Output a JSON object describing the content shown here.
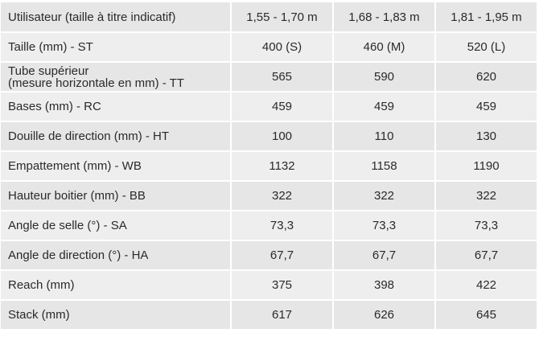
{
  "table": {
    "header": {
      "label": "Utilisateur (taille à titre indicatif)",
      "cols": [
        "1,55 - 1,70 m",
        "1,68 - 1,83 m",
        "1,81 - 1,95 m"
      ]
    },
    "rows": [
      {
        "label_lines": [
          "Taille (mm) - ST"
        ],
        "values": [
          "400 (S)",
          "460 (M)",
          "520 (L)"
        ]
      },
      {
        "label_lines": [
          "Tube supérieur",
          "(mesure horizontale en mm) - TT"
        ],
        "values": [
          "565",
          "590",
          "620"
        ]
      },
      {
        "label_lines": [
          "Bases (mm) - RC"
        ],
        "values": [
          "459",
          "459",
          "459"
        ]
      },
      {
        "label_lines": [
          "Douille de direction (mm) - HT"
        ],
        "values": [
          "100",
          "110",
          "130"
        ]
      },
      {
        "label_lines": [
          "Empattement (mm) - WB"
        ],
        "values": [
          "1132",
          "1158",
          "1190"
        ]
      },
      {
        "label_lines": [
          "Hauteur boitier (mm) - BB"
        ],
        "values": [
          "322",
          "322",
          "322"
        ]
      },
      {
        "label_lines": [
          "Angle de selle (°) - SA"
        ],
        "values": [
          "73,3",
          "73,3",
          "73,3"
        ]
      },
      {
        "label_lines": [
          "Angle de direction (°) - HA"
        ],
        "values": [
          "67,7",
          "67,7",
          "67,7"
        ]
      },
      {
        "label_lines": [
          "Reach (mm)"
        ],
        "values": [
          "375",
          "398",
          "422"
        ]
      },
      {
        "label_lines": [
          "Stack (mm)"
        ],
        "values": [
          "617",
          "626",
          "645"
        ]
      }
    ]
  }
}
